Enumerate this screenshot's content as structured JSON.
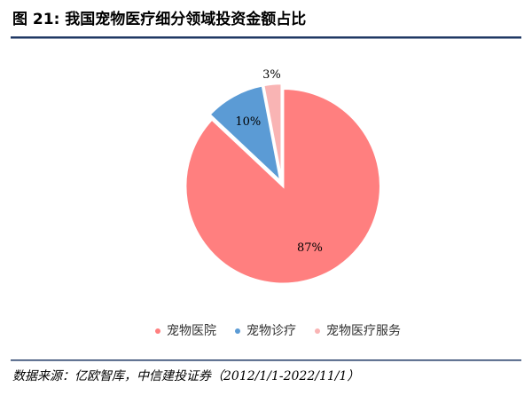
{
  "chart_data": {
    "type": "pie",
    "title": "图 21: 我国宠物医疗细分领域投资金额占比",
    "categories": [
      "宠物医院",
      "宠物诊疗",
      "宠物医疗服务"
    ],
    "values": [
      87,
      10,
      3
    ],
    "value_labels": [
      "87%",
      "10%",
      "3%"
    ],
    "colors": [
      "#ff7f7f",
      "#5b9bd5",
      "#f9b4b4"
    ],
    "legend": "bottom",
    "source": "数据来源：亿欧智库，中信建投证券（2012/1/1-2022/11/1）"
  }
}
